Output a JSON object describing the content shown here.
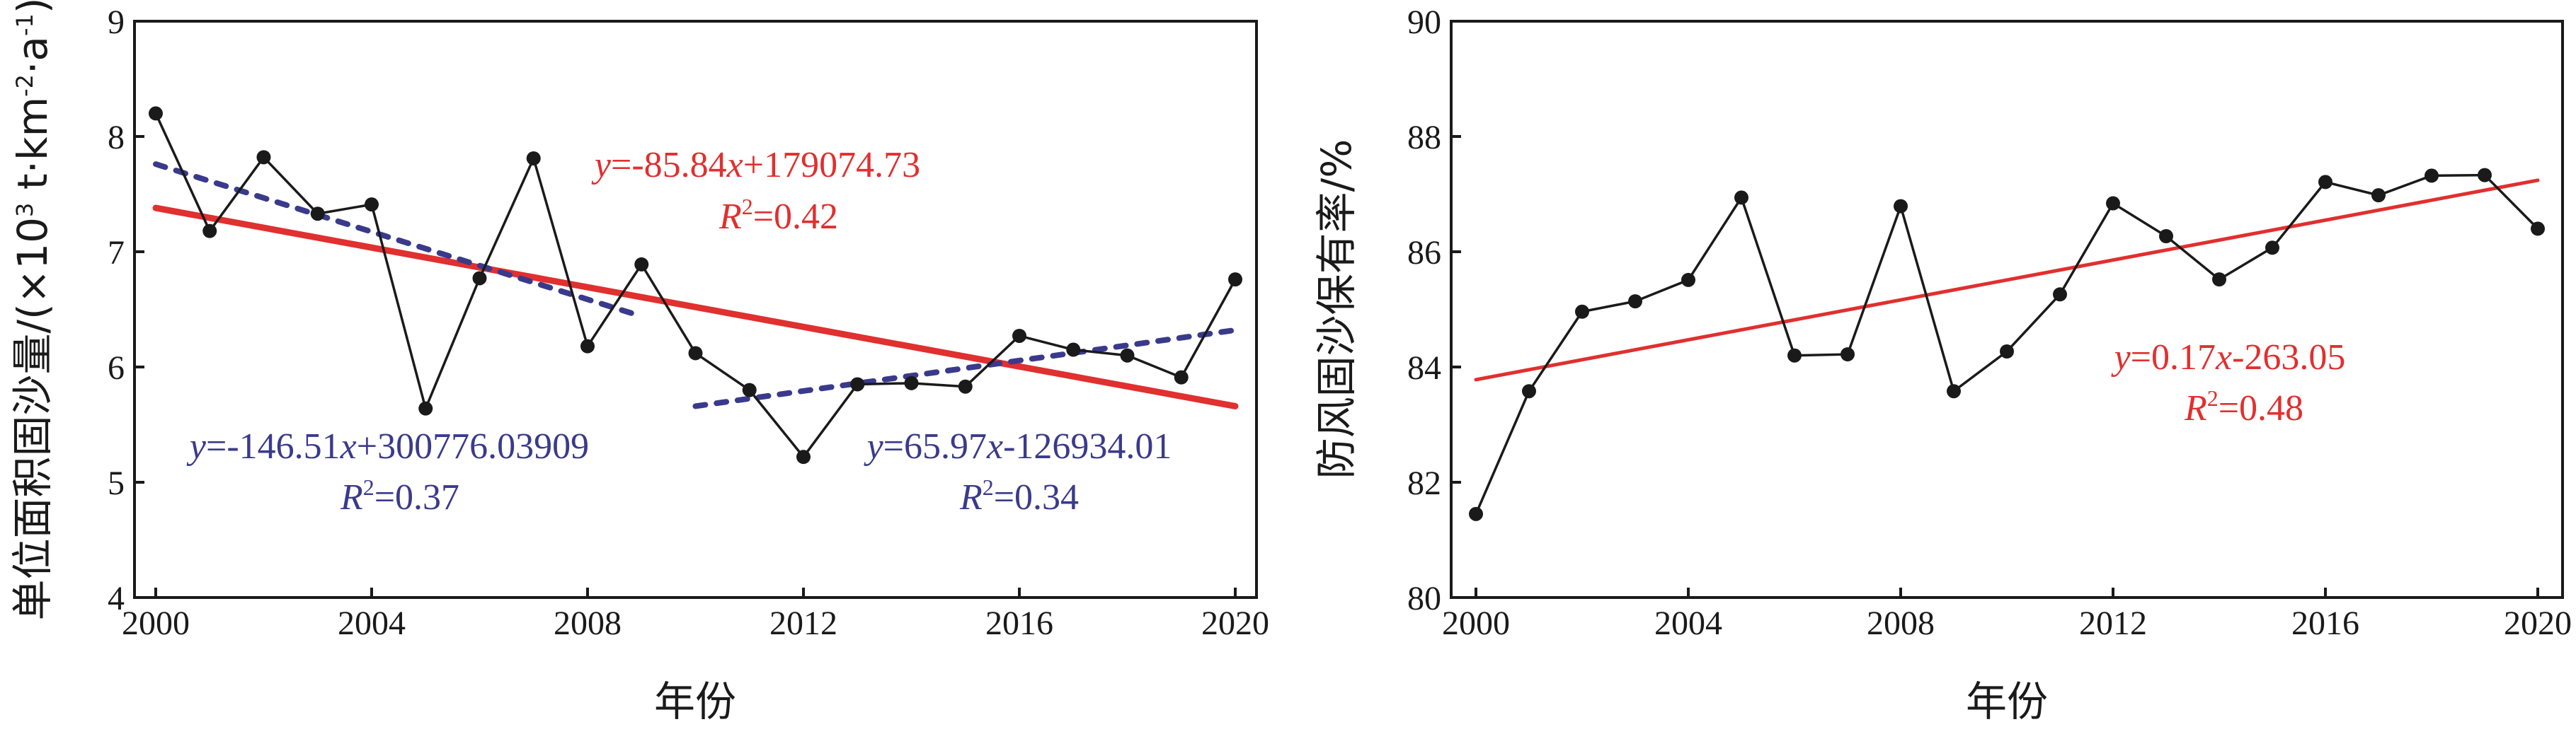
{
  "chart_data": [
    {
      "type": "line",
      "xlabel": "年份",
      "ylabel": "单位面积固沙量/(×10³ t·km⁻²·a⁻¹)",
      "xlim": [
        2000,
        2020
      ],
      "ylim": [
        4,
        9
      ],
      "x_ticks": [
        "2000",
        "2004",
        "2008",
        "2012",
        "2016",
        "2020"
      ],
      "y_ticks": [
        "4",
        "5",
        "6",
        "7",
        "8",
        "9"
      ],
      "grid": false,
      "x": [
        2000,
        2001,
        2002,
        2003,
        2004,
        2005,
        2006,
        2007,
        2008,
        2009,
        2010,
        2011,
        2012,
        2013,
        2014,
        2015,
        2016,
        2017,
        2018,
        2019,
        2020
      ],
      "series": [
        {
          "values": [
            8.2,
            7.18,
            7.82,
            7.33,
            7.41,
            5.64,
            6.77,
            7.81,
            6.18,
            6.89,
            6.12,
            5.8,
            5.22,
            5.85,
            5.86,
            5.83,
            6.27,
            6.15,
            6.1,
            5.91,
            6.76
          ],
          "color": "#1a1a1a"
        }
      ],
      "trendlines": [
        {
          "x": [
            2000,
            2020
          ],
          "y": [
            7.38,
            5.66
          ],
          "color": "#e0302f",
          "style": "solid",
          "equation": "-85.84",
          "equation_rest": "+179074.73",
          "r2": "0.42"
        },
        {
          "x": [
            2000,
            2009
          ],
          "y": [
            7.76,
            6.44
          ],
          "color": "#3a3a8c",
          "style": "dashed",
          "equation": "-146.51",
          "equation_rest": "+300776.03909",
          "r2": "0.37"
        },
        {
          "x": [
            2010,
            2020
          ],
          "y": [
            5.66,
            6.32
          ],
          "color": "#3a3a8c",
          "style": "dashed",
          "equation": "65.97",
          "equation_rest": "-126934.01",
          "r2": "0.34"
        }
      ]
    },
    {
      "type": "line",
      "xlabel": "年份",
      "ylabel": "防风固沙保有率/%",
      "xlim": [
        2000,
        2020
      ],
      "ylim": [
        80,
        90
      ],
      "x_ticks": [
        "2000",
        "2004",
        "2008",
        "2012",
        "2016",
        "2020"
      ],
      "y_ticks": [
        "80",
        "82",
        "84",
        "86",
        "88",
        "90"
      ],
      "grid": false,
      "x": [
        2000,
        2001,
        2002,
        2003,
        2004,
        2005,
        2006,
        2007,
        2008,
        2009,
        2010,
        2011,
        2012,
        2013,
        2014,
        2015,
        2016,
        2017,
        2018,
        2019,
        2020
      ],
      "series": [
        {
          "values": [
            81.45,
            83.58,
            84.96,
            85.14,
            85.51,
            86.94,
            84.2,
            84.22,
            86.79,
            83.58,
            84.27,
            85.26,
            86.84,
            86.27,
            85.52,
            86.07,
            87.21,
            86.98,
            87.32,
            87.33,
            86.4
          ],
          "color": "#1a1a1a"
        }
      ],
      "trendlines": [
        {
          "x": [
            2000,
            2020
          ],
          "y": [
            83.78,
            87.24
          ],
          "color": "#e0302f",
          "style": "solid",
          "equation": "0.17",
          "equation_rest": "-263.05",
          "r2": "0.48"
        }
      ]
    }
  ],
  "labels": {
    "y_var": "y",
    "x_var": "x",
    "r2_sym": "R",
    "r2_sup": "2",
    "eq_sign": "=",
    "ylabel_left_main": "单位面积固沙量/(×10",
    "ylabel_left_sup1": "3",
    "ylabel_left_mid1": " t·km",
    "ylabel_left_sup2": "-2",
    "ylabel_left_mid2": "·a",
    "ylabel_left_sup3": "-1",
    "ylabel_left_end": ")"
  }
}
